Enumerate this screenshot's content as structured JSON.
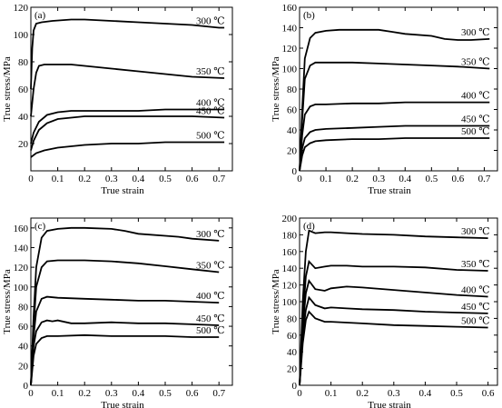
{
  "chart_data": [
    {
      "type": "line",
      "panel_label": "(a)",
      "xlabel": "True strain",
      "ylabel": "True stress/MPa",
      "xlim": [
        0,
        0.75
      ],
      "ylim": [
        0,
        120
      ],
      "xticks": [
        0,
        0.1,
        0.2,
        0.3,
        0.4,
        0.5,
        0.6,
        0.7
      ],
      "yticks": [
        20,
        40,
        60,
        80,
        100,
        120
      ],
      "xtick_labels": [
        "0",
        "0.1",
        "0.2",
        "0.3",
        "0.4",
        "0.5",
        "0.6",
        "0.7"
      ],
      "ytick_labels": [
        "20",
        "40",
        "60",
        "80",
        "100",
        "120"
      ],
      "series": [
        {
          "name": "300 ℃",
          "x": [
            0,
            0.005,
            0.01,
            0.02,
            0.04,
            0.08,
            0.15,
            0.2,
            0.3,
            0.4,
            0.5,
            0.6,
            0.7,
            0.72
          ],
          "y": [
            60,
            90,
            103,
            108,
            109,
            110,
            111,
            111,
            110,
            109,
            108,
            107,
            105,
            105
          ]
        },
        {
          "name": "350 ℃",
          "x": [
            0,
            0.01,
            0.02,
            0.03,
            0.05,
            0.08,
            0.15,
            0.2,
            0.3,
            0.4,
            0.5,
            0.6,
            0.72
          ],
          "y": [
            40,
            60,
            72,
            77,
            78,
            78,
            78,
            77,
            75,
            73,
            71,
            69,
            68
          ]
        },
        {
          "name": "400 ℃",
          "x": [
            0,
            0.01,
            0.03,
            0.06,
            0.1,
            0.15,
            0.2,
            0.3,
            0.4,
            0.5,
            0.6,
            0.72
          ],
          "y": [
            20,
            28,
            36,
            41,
            43,
            44,
            44,
            44,
            44,
            45,
            45,
            45
          ]
        },
        {
          "name": "450 ℃",
          "x": [
            0,
            0.01,
            0.03,
            0.06,
            0.1,
            0.15,
            0.2,
            0.3,
            0.4,
            0.5,
            0.6,
            0.72
          ],
          "y": [
            15,
            22,
            30,
            35,
            38,
            39,
            40,
            40,
            40,
            40,
            40,
            39
          ]
        },
        {
          "name": "500 ℃",
          "x": [
            0,
            0.02,
            0.05,
            0.1,
            0.15,
            0.2,
            0.3,
            0.4,
            0.5,
            0.6,
            0.72
          ],
          "y": [
            10,
            13,
            15,
            17,
            18,
            19,
            20,
            20,
            21,
            21,
            21
          ]
        }
      ]
    },
    {
      "type": "line",
      "panel_label": "(b)",
      "xlabel": "True strain",
      "ylabel": "True stress/MPa",
      "xlim": [
        0,
        0.75
      ],
      "ylim": [
        0,
        160
      ],
      "xticks": [
        0,
        0.1,
        0.2,
        0.3,
        0.4,
        0.5,
        0.6,
        0.7
      ],
      "yticks": [
        0,
        20,
        40,
        60,
        80,
        100,
        120,
        140,
        160
      ],
      "xtick_labels": [
        "0",
        "0.1",
        "0.2",
        "0.3",
        "0.4",
        "0.5",
        "0.6",
        "0.7"
      ],
      "ytick_labels": [
        "0",
        "20",
        "40",
        "60",
        "80",
        "100",
        "120",
        "140",
        "160"
      ],
      "series": [
        {
          "name": "300 ℃",
          "x": [
            0,
            0.01,
            0.02,
            0.04,
            0.06,
            0.1,
            0.15,
            0.2,
            0.3,
            0.35,
            0.4,
            0.5,
            0.55,
            0.6,
            0.65,
            0.72
          ],
          "y": [
            0,
            60,
            110,
            130,
            135,
            137,
            138,
            138,
            138,
            136,
            134,
            132,
            129,
            128,
            128,
            129
          ]
        },
        {
          "name": "350 ℃",
          "x": [
            0,
            0.01,
            0.02,
            0.04,
            0.06,
            0.1,
            0.2,
            0.3,
            0.4,
            0.5,
            0.6,
            0.72
          ],
          "y": [
            0,
            50,
            90,
            103,
            106,
            106,
            106,
            105,
            104,
            103,
            102,
            100
          ]
        },
        {
          "name": "400 ℃",
          "x": [
            0,
            0.01,
            0.02,
            0.04,
            0.06,
            0.1,
            0.2,
            0.3,
            0.4,
            0.5,
            0.6,
            0.72
          ],
          "y": [
            0,
            35,
            55,
            63,
            65,
            65,
            66,
            66,
            67,
            67,
            67,
            67
          ]
        },
        {
          "name": "450 ℃",
          "x": [
            0,
            0.01,
            0.02,
            0.04,
            0.06,
            0.1,
            0.2,
            0.3,
            0.4,
            0.5,
            0.6,
            0.72
          ],
          "y": [
            0,
            22,
            32,
            38,
            40,
            41,
            42,
            43,
            44,
            44,
            44,
            44
          ]
        },
        {
          "name": "500 ℃",
          "x": [
            0,
            0.01,
            0.02,
            0.04,
            0.06,
            0.1,
            0.2,
            0.3,
            0.4,
            0.5,
            0.6,
            0.72
          ],
          "y": [
            0,
            15,
            23,
            27,
            29,
            30,
            31,
            31,
            32,
            32,
            32,
            32
          ]
        }
      ]
    },
    {
      "type": "line",
      "panel_label": "(c)",
      "xlabel": "True strain",
      "ylabel": "True stress/MPa",
      "xlim": [
        0,
        0.75
      ],
      "ylim": [
        0,
        170
      ],
      "xticks": [
        0,
        0.1,
        0.2,
        0.3,
        0.4,
        0.5,
        0.6,
        0.7
      ],
      "yticks": [
        0,
        20,
        40,
        60,
        80,
        100,
        120,
        140,
        160
      ],
      "xtick_labels": [
        "0",
        "0.1",
        "0.2",
        "0.3",
        "0.4",
        "0.5",
        "0.6",
        "0.7"
      ],
      "ytick_labels": [
        "0",
        "20",
        "40",
        "60",
        "80",
        "100",
        "120",
        "140",
        "160"
      ],
      "series": [
        {
          "name": "300 ℃",
          "x": [
            0,
            0.01,
            0.02,
            0.04,
            0.06,
            0.1,
            0.15,
            0.2,
            0.3,
            0.35,
            0.4,
            0.5,
            0.55,
            0.6,
            0.7
          ],
          "y": [
            0,
            70,
            120,
            150,
            157,
            159,
            160,
            160,
            159,
            157,
            154,
            152,
            151,
            149,
            147
          ]
        },
        {
          "name": "350 ℃",
          "x": [
            0,
            0.01,
            0.02,
            0.04,
            0.06,
            0.1,
            0.2,
            0.3,
            0.4,
            0.5,
            0.6,
            0.7
          ],
          "y": [
            0,
            60,
            100,
            120,
            126,
            127,
            127,
            126,
            124,
            121,
            118,
            115
          ]
        },
        {
          "name": "400 ℃",
          "x": [
            0,
            0.01,
            0.02,
            0.04,
            0.06,
            0.1,
            0.2,
            0.3,
            0.4,
            0.5,
            0.6,
            0.7
          ],
          "y": [
            0,
            50,
            75,
            88,
            90,
            89,
            88,
            87,
            86,
            86,
            85,
            84
          ]
        },
        {
          "name": "450 ℃",
          "x": [
            0,
            0.01,
            0.02,
            0.04,
            0.06,
            0.08,
            0.1,
            0.15,
            0.2,
            0.3,
            0.4,
            0.5,
            0.6,
            0.7
          ],
          "y": [
            0,
            40,
            55,
            64,
            66,
            65,
            66,
            63,
            63,
            64,
            63,
            63,
            62,
            61
          ]
        },
        {
          "name": "500 ℃",
          "x": [
            0,
            0.01,
            0.02,
            0.04,
            0.06,
            0.1,
            0.2,
            0.3,
            0.4,
            0.5,
            0.6,
            0.7
          ],
          "y": [
            0,
            30,
            42,
            48,
            50,
            50,
            51,
            50,
            50,
            50,
            49,
            49
          ]
        }
      ]
    },
    {
      "type": "line",
      "panel_label": "(d)",
      "xlabel": "True strain",
      "ylabel": "True stress/MPa",
      "xlim": [
        0,
        0.63
      ],
      "ylim": [
        0,
        200
      ],
      "xticks": [
        0,
        0.1,
        0.2,
        0.3,
        0.4,
        0.5,
        0.6
      ],
      "yticks": [
        0,
        20,
        40,
        60,
        80,
        100,
        120,
        140,
        160,
        180,
        200
      ],
      "xtick_labels": [
        "0",
        "0.1",
        "0.2",
        "0.3",
        "0.4",
        "0.5",
        "0.6"
      ],
      "ytick_labels": [
        "0",
        "20",
        "40",
        "60",
        "80",
        "100",
        "120",
        "140",
        "160",
        "180",
        "200"
      ],
      "series": [
        {
          "name": "300 ℃",
          "x": [
            0,
            0.01,
            0.02,
            0.03,
            0.05,
            0.08,
            0.1,
            0.15,
            0.2,
            0.3,
            0.4,
            0.5,
            0.6
          ],
          "y": [
            0,
            100,
            160,
            185,
            182,
            183,
            183,
            182,
            181,
            180,
            178,
            177,
            176
          ]
        },
        {
          "name": "350 ℃",
          "x": [
            0,
            0.01,
            0.02,
            0.03,
            0.05,
            0.08,
            0.1,
            0.15,
            0.2,
            0.3,
            0.4,
            0.5,
            0.6
          ],
          "y": [
            0,
            80,
            130,
            148,
            140,
            142,
            143,
            143,
            142,
            142,
            141,
            138,
            137
          ]
        },
        {
          "name": "400 ℃",
          "x": [
            0,
            0.01,
            0.02,
            0.03,
            0.05,
            0.08,
            0.1,
            0.15,
            0.2,
            0.3,
            0.4,
            0.5,
            0.6
          ],
          "y": [
            0,
            70,
            110,
            125,
            115,
            113,
            116,
            118,
            117,
            114,
            111,
            108,
            106
          ]
        },
        {
          "name": "450 ℃",
          "x": [
            0,
            0.01,
            0.02,
            0.03,
            0.05,
            0.08,
            0.1,
            0.15,
            0.2,
            0.3,
            0.4,
            0.5,
            0.6
          ],
          "y": [
            0,
            60,
            90,
            105,
            96,
            92,
            93,
            92,
            91,
            90,
            88,
            87,
            86
          ]
        },
        {
          "name": "500 ℃",
          "x": [
            0,
            0.01,
            0.02,
            0.03,
            0.05,
            0.08,
            0.1,
            0.15,
            0.2,
            0.3,
            0.4,
            0.5,
            0.6
          ],
          "y": [
            0,
            50,
            78,
            88,
            80,
            76,
            76,
            75,
            74,
            72,
            71,
            70,
            69
          ]
        }
      ]
    }
  ]
}
